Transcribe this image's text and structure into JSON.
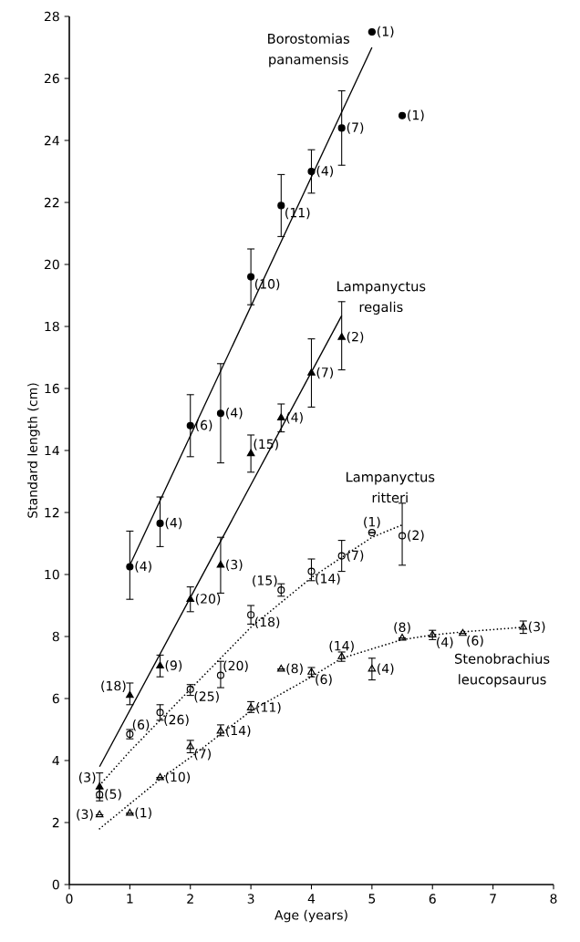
{
  "chart_data": {
    "type": "scatter",
    "xlabel": "Age (years)",
    "ylabel": "Standard length (cm)",
    "xlim": [
      0,
      8
    ],
    "ylim": [
      0,
      28
    ],
    "xticks": [
      0,
      1,
      2,
      3,
      4,
      5,
      6,
      7,
      8
    ],
    "yticks": [
      0,
      2,
      4,
      6,
      8,
      10,
      12,
      14,
      16,
      18,
      20,
      22,
      24,
      26,
      28
    ],
    "grid": false,
    "series": [
      {
        "name": "Borostomias panamensis",
        "type": "scatter",
        "marker": "circle",
        "color": "#000000",
        "x": [
          1,
          1.5,
          2,
          2.5,
          3,
          3.5,
          4,
          4.5,
          5,
          5.5
        ],
        "values": [
          10.25,
          11.65,
          14.8,
          15.2,
          19.6,
          21.9,
          23.0,
          24.4,
          27.5,
          24.8
        ],
        "errors": [
          [
            9.2,
            11.4
          ],
          [
            10.9,
            12.5
          ],
          [
            13.8,
            15.8
          ],
          [
            13.6,
            16.8
          ],
          [
            18.7,
            20.5
          ],
          [
            20.9,
            22.9
          ],
          [
            22.3,
            23.7
          ],
          [
            23.2,
            25.6
          ],
          null,
          null
        ]
      },
      {
        "name": "Lampanyctus regalis",
        "type": "scatter",
        "marker": "triangle",
        "color": "#000000",
        "x": [
          0.5,
          1,
          1.5,
          2,
          2.5,
          3,
          3.5,
          4,
          4.5
        ],
        "values": [
          3.15,
          6.1,
          7.05,
          9.2,
          10.3,
          13.9,
          15.05,
          16.5,
          17.65
        ],
        "errors": [
          [
            2.8,
            3.6
          ],
          [
            5.8,
            6.5
          ],
          [
            6.7,
            7.4
          ],
          [
            8.8,
            9.6
          ],
          [
            9.4,
            11.2
          ],
          [
            13.3,
            14.5
          ],
          [
            14.6,
            15.5
          ],
          [
            15.4,
            17.6
          ],
          [
            16.6,
            18.8
          ]
        ]
      },
      {
        "name": "Lampanyctus ritteri",
        "type": "scatter",
        "marker": "circle",
        "color": "#000000",
        "x": [
          0.5,
          1,
          1.5,
          2,
          2.5,
          3,
          3.5,
          4,
          4.5,
          5,
          5.5
        ],
        "values": [
          2.9,
          4.85,
          5.55,
          6.3,
          6.75,
          8.7,
          9.5,
          10.1,
          10.6,
          11.35,
          11.25
        ],
        "errors": [
          [
            2.7,
            3.1
          ],
          [
            4.7,
            5.0
          ],
          [
            5.3,
            5.8
          ],
          [
            6.1,
            6.45
          ],
          [
            6.35,
            7.2
          ],
          [
            8.4,
            9.0
          ],
          [
            9.3,
            9.7
          ],
          [
            9.8,
            10.5
          ],
          [
            10.1,
            11.1
          ],
          null,
          [
            10.3,
            12.3
          ]
        ]
      },
      {
        "name": "Stenobrachius leucopsaurus",
        "type": "scatter",
        "marker": "triangle",
        "color": "#000000",
        "x": [
          0.5,
          1,
          1.5,
          2,
          2.5,
          3,
          3.5,
          4,
          4.5,
          5,
          5.5,
          6,
          6.5,
          7.5
        ],
        "values": [
          2.25,
          2.3,
          3.45,
          4.45,
          4.95,
          5.7,
          6.95,
          6.85,
          7.35,
          6.95,
          7.95,
          8.05,
          8.1,
          8.3
        ],
        "errors": [
          null,
          null,
          null,
          [
            4.25,
            4.65
          ],
          [
            4.8,
            5.15
          ],
          [
            5.55,
            5.9
          ],
          null,
          [
            6.7,
            7.0
          ],
          [
            7.2,
            7.5
          ],
          [
            6.6,
            7.3
          ],
          null,
          [
            7.9,
            8.2
          ],
          null,
          [
            8.1,
            8.5
          ]
        ]
      },
      {
        "type": "line",
        "line_style": "solid",
        "marker": "none",
        "color": "#000000",
        "x": [
          1,
          5
        ],
        "values": [
          10.3,
          27.0
        ]
      },
      {
        "type": "line",
        "line_style": "solid",
        "marker": "none",
        "color": "#000000",
        "x": [
          0.5,
          4.5
        ],
        "values": [
          3.8,
          18.35
        ]
      },
      {
        "type": "line",
        "line_style": "dotted",
        "marker": "none",
        "color": "#000000",
        "x": [
          0.5,
          1,
          2,
          3,
          4,
          5,
          5.5
        ],
        "values": [
          3.2,
          4.3,
          6.3,
          8.3,
          9.9,
          11.2,
          11.6
        ]
      },
      {
        "type": "line",
        "line_style": "dotted",
        "marker": "none",
        "color": "#000000",
        "x": [
          0.5,
          1.5,
          2,
          3,
          4,
          4.5,
          5.5,
          6,
          6.5,
          7.5
        ],
        "values": [
          1.8,
          3.4,
          4.1,
          5.6,
          6.7,
          7.3,
          7.9,
          8.05,
          8.15,
          8.3
        ]
      }
    ],
    "annotations": [
      {
        "text": "(4)",
        "x": 1,
        "y": 10.25
      },
      {
        "text": "(4)",
        "x": 1.5,
        "y": 11.65
      },
      {
        "text": "(6)",
        "x": 2,
        "y": 14.8
      },
      {
        "text": "(4)",
        "x": 2.5,
        "y": 15.2
      },
      {
        "text": "(10)",
        "x": 3,
        "y": 19.6
      },
      {
        "text": "(11)",
        "x": 3.5,
        "y": 21.9
      },
      {
        "text": "(4)",
        "x": 4,
        "y": 23.0
      },
      {
        "text": "(7)",
        "x": 4.5,
        "y": 24.4
      },
      {
        "text": "(1)",
        "x": 5,
        "y": 27.5
      },
      {
        "text": "(1)",
        "x": 5.5,
        "y": 24.8
      },
      {
        "text": "(3)",
        "x": 0.5,
        "y": 3.15
      },
      {
        "text": "(18)",
        "x": 1,
        "y": 6.1
      },
      {
        "text": "(9)",
        "x": 1.5,
        "y": 7.05
      },
      {
        "text": "(20)",
        "x": 2,
        "y": 9.2
      },
      {
        "text": "(3)",
        "x": 2.5,
        "y": 10.3
      },
      {
        "text": "(15)",
        "x": 3,
        "y": 13.9
      },
      {
        "text": "(4)",
        "x": 3.5,
        "y": 15.05
      },
      {
        "text": "(7)",
        "x": 4,
        "y": 16.5
      },
      {
        "text": "(2)",
        "x": 4.5,
        "y": 17.65
      },
      {
        "text": "(5)",
        "x": 0.5,
        "y": 2.9
      },
      {
        "text": "(6)",
        "x": 1,
        "y": 4.85
      },
      {
        "text": "(26)",
        "x": 1.5,
        "y": 5.55
      },
      {
        "text": "(25)",
        "x": 2,
        "y": 6.3
      },
      {
        "text": "(20)",
        "x": 2.5,
        "y": 6.75
      },
      {
        "text": "(18)",
        "x": 3,
        "y": 8.7
      },
      {
        "text": "(15)",
        "x": 3.5,
        "y": 9.5
      },
      {
        "text": "(14)",
        "x": 4,
        "y": 10.1
      },
      {
        "text": "(7)",
        "x": 4.5,
        "y": 10.6
      },
      {
        "text": "(1)",
        "x": 5,
        "y": 11.35
      },
      {
        "text": "(2)",
        "x": 5.5,
        "y": 11.25
      },
      {
        "text": "(3)",
        "x": 0.5,
        "y": 2.25
      },
      {
        "text": "(1)",
        "x": 1,
        "y": 2.3
      },
      {
        "text": "(10)",
        "x": 1.5,
        "y": 3.45
      },
      {
        "text": "(7)",
        "x": 2,
        "y": 4.45
      },
      {
        "text": "(14)",
        "x": 2.5,
        "y": 4.95
      },
      {
        "text": "(11)",
        "x": 3,
        "y": 5.7
      },
      {
        "text": "(8)",
        "x": 3.5,
        "y": 6.95
      },
      {
        "text": "(6)",
        "x": 4,
        "y": 6.85
      },
      {
        "text": "(14)",
        "x": 4.5,
        "y": 7.35
      },
      {
        "text": "(4)",
        "x": 5,
        "y": 6.95
      },
      {
        "text": "(8)",
        "x": 5.5,
        "y": 7.95
      },
      {
        "text": "(4)",
        "x": 6,
        "y": 8.05
      },
      {
        "text": "(6)",
        "x": 6.5,
        "y": 8.1
      },
      {
        "text": "(3)",
        "x": 7.5,
        "y": 8.3
      }
    ]
  }
}
